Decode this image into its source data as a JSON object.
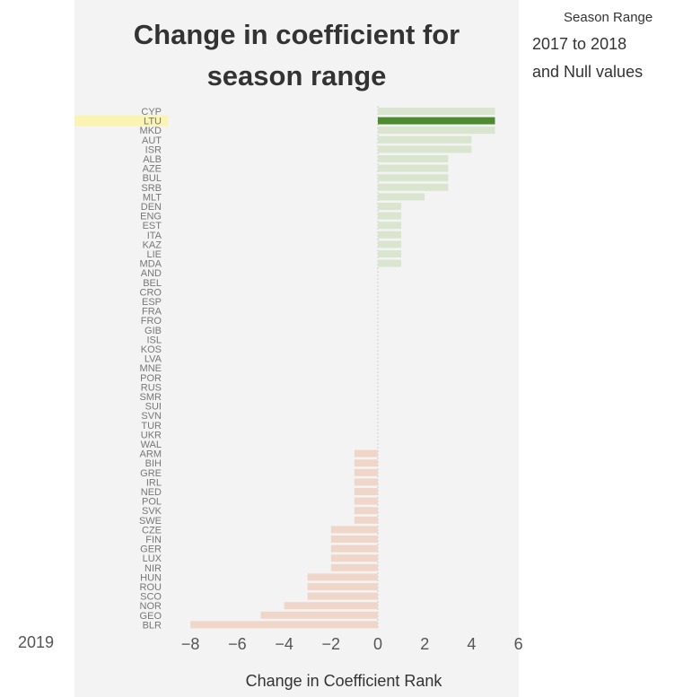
{
  "header": {
    "title_line1": "Change in coefficient for",
    "title_line2": "season range"
  },
  "filter": {
    "label": "Season Range",
    "value_line1": "2017 to 2018",
    "value_line2": "and Null values"
  },
  "footer": {
    "year": "2019"
  },
  "colors": {
    "positive": "#d9e5cf",
    "positive_highlight": "#4e8a2e",
    "negative": "#efd6c8",
    "row_highlight": "#fbf3b2",
    "zero_line": "#cccccc"
  },
  "chart_data": {
    "type": "bar",
    "orientation": "horizontal",
    "xlabel": "Change in Coefficient Rank",
    "xlim": [
      -8,
      6
    ],
    "xticks": [
      -8,
      -6,
      -4,
      -2,
      0,
      2,
      4,
      6
    ],
    "highlighted": "LTU",
    "categories": [
      "CYP",
      "LTU",
      "MKD",
      "AUT",
      "ISR",
      "ALB",
      "AZE",
      "BUL",
      "SRB",
      "MLT",
      "DEN",
      "ENG",
      "EST",
      "ITA",
      "KAZ",
      "LIE",
      "MDA",
      "AND",
      "BEL",
      "CRO",
      "ESP",
      "FRA",
      "FRO",
      "GIB",
      "ISL",
      "KOS",
      "LVA",
      "MNE",
      "POR",
      "RUS",
      "SMR",
      "SUI",
      "SVN",
      "TUR",
      "UKR",
      "WAL",
      "ARM",
      "BIH",
      "GRE",
      "IRL",
      "NED",
      "POL",
      "SVK",
      "SWE",
      "CZE",
      "FIN",
      "GER",
      "LUX",
      "NIR",
      "HUN",
      "ROU",
      "SCO",
      "NOR",
      "GEO",
      "BLR"
    ],
    "values": [
      5,
      5,
      5,
      4,
      4,
      3,
      3,
      3,
      3,
      2,
      1,
      1,
      1,
      1,
      1,
      1,
      1,
      0,
      0,
      0,
      0,
      0,
      0,
      0,
      0,
      0,
      0,
      0,
      0,
      0,
      0,
      0,
      0,
      0,
      0,
      0,
      -1,
      -1,
      -1,
      -1,
      -1,
      -1,
      -1,
      -1,
      -2,
      -2,
      -2,
      -2,
      -2,
      -3,
      -3,
      -3,
      -4,
      -5,
      -8
    ]
  }
}
